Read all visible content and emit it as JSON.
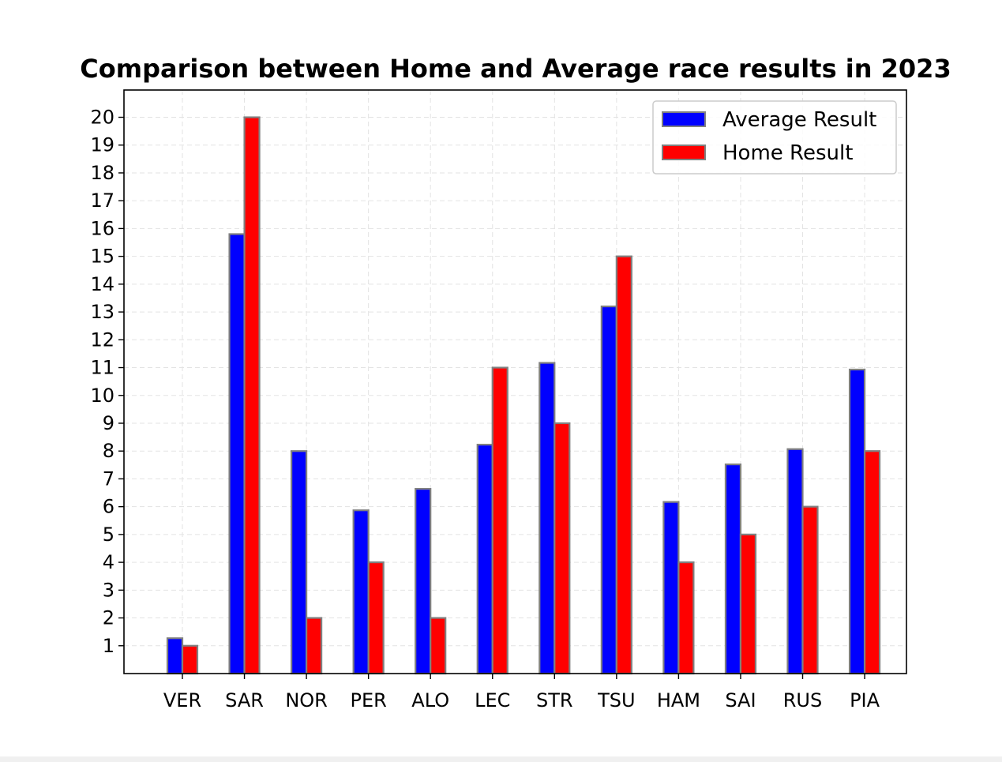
{
  "chart_data": {
    "type": "bar",
    "title": "Comparison between Home and Average race results in 2023",
    "xlabel": "",
    "ylabel": "",
    "categories": [
      "VER",
      "SAR",
      "NOR",
      "PER",
      "ALO",
      "LEC",
      "STR",
      "TSU",
      "HAM",
      "SAI",
      "RUS",
      "PIA"
    ],
    "series": [
      {
        "name": "Average Result",
        "color": "#0000ff",
        "values": [
          1.27,
          15.8,
          8.0,
          5.87,
          6.64,
          8.23,
          11.17,
          13.2,
          6.17,
          7.52,
          8.07,
          10.93
        ]
      },
      {
        "name": "Home Result",
        "color": "#ff0000",
        "values": [
          1,
          20,
          2,
          4,
          2,
          11,
          9,
          15,
          4,
          5,
          6,
          8
        ]
      }
    ],
    "ylim": [
      0,
      20.98
    ],
    "yticks": [
      1,
      2,
      3,
      4,
      5,
      6,
      7,
      8,
      9,
      10,
      11,
      12,
      13,
      14,
      15,
      16,
      17,
      18,
      19,
      20
    ],
    "grid": true,
    "legend_position": "top-right",
    "bar_edge_color": "#808080"
  }
}
